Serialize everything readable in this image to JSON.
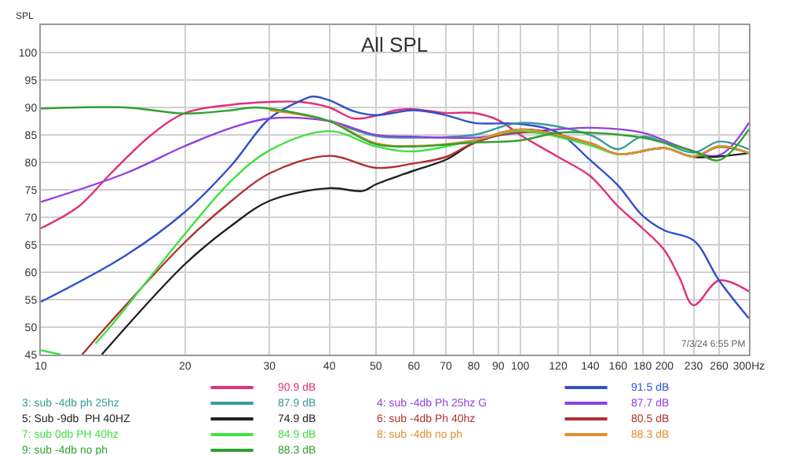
{
  "chart_data": {
    "type": "line",
    "title": "All SPL",
    "ylabel": "SPL",
    "log": "x",
    "grid": true,
    "legend": "bottom",
    "xlim": [
      10,
      300
    ],
    "ylim": [
      45,
      105
    ],
    "xticks": [
      10,
      20,
      30,
      40,
      50,
      60,
      70,
      80,
      90,
      100,
      120,
      140,
      160,
      180,
      200,
      230,
      260,
      {
        "value": 300,
        "label": "300Hz"
      }
    ],
    "yticks": [
      45,
      50,
      55,
      60,
      65,
      70,
      75,
      80,
      85,
      90,
      95,
      100
    ],
    "annotations": [
      "7/3/24 6:55 PM",
      "90.9 dB",
      "91.5 dB",
      "87.9 dB",
      "87.7 dB",
      "74.9 dB",
      "80.5 dB",
      "84.9 dB",
      "88.3 dB",
      "88.3 dB"
    ],
    "series": [
      {
        "color": "#e0307a",
        "x": [
          10,
          12,
          14,
          17,
          20,
          25,
          30,
          35,
          40,
          45,
          50,
          55,
          60,
          70,
          80,
          90,
          100,
          120,
          140,
          160,
          180,
          200,
          215,
          230,
          260,
          300
        ],
        "values": [
          68,
          72,
          78,
          85,
          89,
          90.5,
          91,
          91,
          90,
          88,
          88.5,
          89.5,
          89.7,
          89,
          89,
          87.7,
          85,
          81,
          77.5,
          72,
          68,
          64,
          59,
          54,
          58.5,
          56.5
        ]
      },
      {
        "color": "#3050c8",
        "x": [
          10,
          15,
          20,
          25,
          30,
          35,
          37,
          40,
          45,
          50,
          60,
          70,
          80,
          100,
          120,
          140,
          160,
          180,
          200,
          230,
          260,
          300
        ],
        "values": [
          54.6,
          63,
          71,
          79.5,
          88,
          91.3,
          92,
          91.3,
          89.3,
          88.6,
          89.5,
          88.6,
          87.2,
          87,
          85.4,
          80.4,
          75.8,
          70.3,
          67.6,
          65.8,
          58.5,
          51.6
        ]
      },
      {
        "name": "3: sub -4db ph 25hz",
        "color": "#3a9a9a",
        "x": [
          40,
          50,
          60,
          80,
          100,
          140,
          160,
          180,
          230,
          260,
          300
        ],
        "values": [
          87.7,
          84.8,
          84.5,
          85,
          87.2,
          85,
          82.4,
          84.7,
          81.8,
          83.8,
          82.4
        ]
      },
      {
        "name": "4: sub -4db Ph 25hz G",
        "color": "#9040e0",
        "x": [
          10,
          15,
          20,
          25,
          30,
          40,
          50,
          60,
          80,
          100,
          140,
          180,
          220,
          260,
          300
        ],
        "values": [
          72.8,
          78,
          83,
          86.3,
          88,
          87.5,
          85,
          84.7,
          84.5,
          85.4,
          86.3,
          85.4,
          82.6,
          81.3,
          87.2
        ]
      },
      {
        "name": "5: Sub -9db  PH 40HZ",
        "color": "#202020",
        "x": [
          13.4,
          20,
          25,
          30,
          40,
          47,
          50,
          60,
          70,
          80,
          100,
          140,
          160,
          200,
          230,
          300
        ],
        "values": [
          45,
          61.5,
          68.5,
          73,
          75.3,
          74.8,
          76,
          78.5,
          80.5,
          83.5,
          86,
          83.5,
          81.5,
          82.6,
          81,
          81.7
        ]
      },
      {
        "name": "6: sub -4db Ph 40hz",
        "color": "#b03030",
        "x": [
          12.2,
          14,
          20,
          25,
          30,
          40,
          50,
          60,
          70,
          80,
          100,
          140,
          160,
          200,
          230,
          260,
          300
        ],
        "values": [
          45,
          51,
          65.5,
          73,
          78,
          81.2,
          79,
          79.8,
          81,
          83.5,
          85.5,
          83.5,
          81.5,
          82.6,
          81.1,
          82.8,
          81.7
        ]
      },
      {
        "name": "7: sub 0db PH 40hz",
        "color": "#40e040",
        "x": [
          10,
          11,
          12,
          13,
          14,
          20,
          25,
          30,
          40,
          50,
          60,
          80,
          100,
          140,
          160,
          200,
          230,
          260,
          300
        ],
        "values": [
          45.8,
          45,
          null,
          47,
          50.2,
          67,
          76.7,
          82.2,
          85.7,
          82.9,
          82,
          84,
          85.7,
          83.1,
          81.5,
          82.6,
          81.1,
          82.9,
          81.7
        ]
      },
      {
        "name": "8: sub -4db no ph",
        "color": "#e09030",
        "x": [
          30,
          40,
          50,
          60,
          80,
          100,
          140,
          160,
          200,
          230,
          260,
          300
        ],
        "values": [
          89.5,
          87.5,
          83.5,
          83,
          84,
          86,
          83.5,
          81.5,
          82.6,
          81,
          83,
          81.7
        ]
      },
      {
        "name": "9: sub -4db no ph",
        "color": "#30a030",
        "x": [
          10,
          15,
          20,
          25,
          28,
          35,
          40,
          50,
          60,
          80,
          100,
          120,
          140,
          180,
          230,
          260,
          300
        ],
        "values": [
          89.8,
          90,
          88.9,
          89.5,
          90,
          88.8,
          87.5,
          83.3,
          82.9,
          83.6,
          84,
          85.4,
          85.4,
          84.5,
          82,
          80.4,
          86
        ]
      }
    ]
  }
}
